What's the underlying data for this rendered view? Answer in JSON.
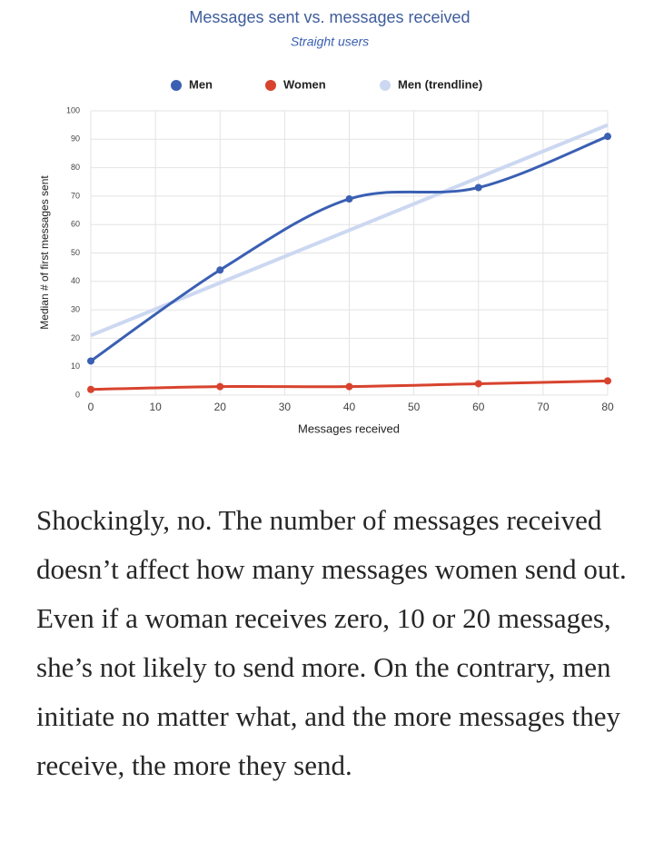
{
  "chart_data": {
    "type": "line",
    "title": "Messages sent vs. messages received",
    "subtitle": "Straight users",
    "x_label": "Messages received",
    "y_label": "Median # of first messages sent",
    "x": [
      0,
      20,
      40,
      60,
      80
    ],
    "series": [
      {
        "name": "Men",
        "color": "#3a5fb3",
        "values": [
          12,
          44,
          69,
          73,
          91
        ],
        "smooth": true
      },
      {
        "name": "Women",
        "color": "#d8432e",
        "values": [
          2,
          3,
          3,
          4,
          5
        ],
        "smooth": true
      },
      {
        "name": "Men (trendline)",
        "color": "#ccd8f1",
        "x": [
          0,
          80
        ],
        "values": [
          21,
          95
        ],
        "smooth": false
      }
    ],
    "xlim": [
      0,
      80
    ],
    "xticks": [
      0,
      10,
      20,
      30,
      40,
      50,
      60,
      70,
      80
    ],
    "ylim": [
      0,
      100
    ],
    "yticks": [
      0,
      10,
      20,
      30,
      40,
      50,
      60,
      70,
      80,
      90,
      100
    ],
    "grid": true,
    "legend": "top"
  },
  "body_text": "Shockingly, no. The number of messages received doesn’t affect how many messages women send out. Even if a woman receives zero, 10 or 20 messages, she’s not likely to send more. On the contrary, men initiate no matter what, and the more messages they receive, the more they send."
}
